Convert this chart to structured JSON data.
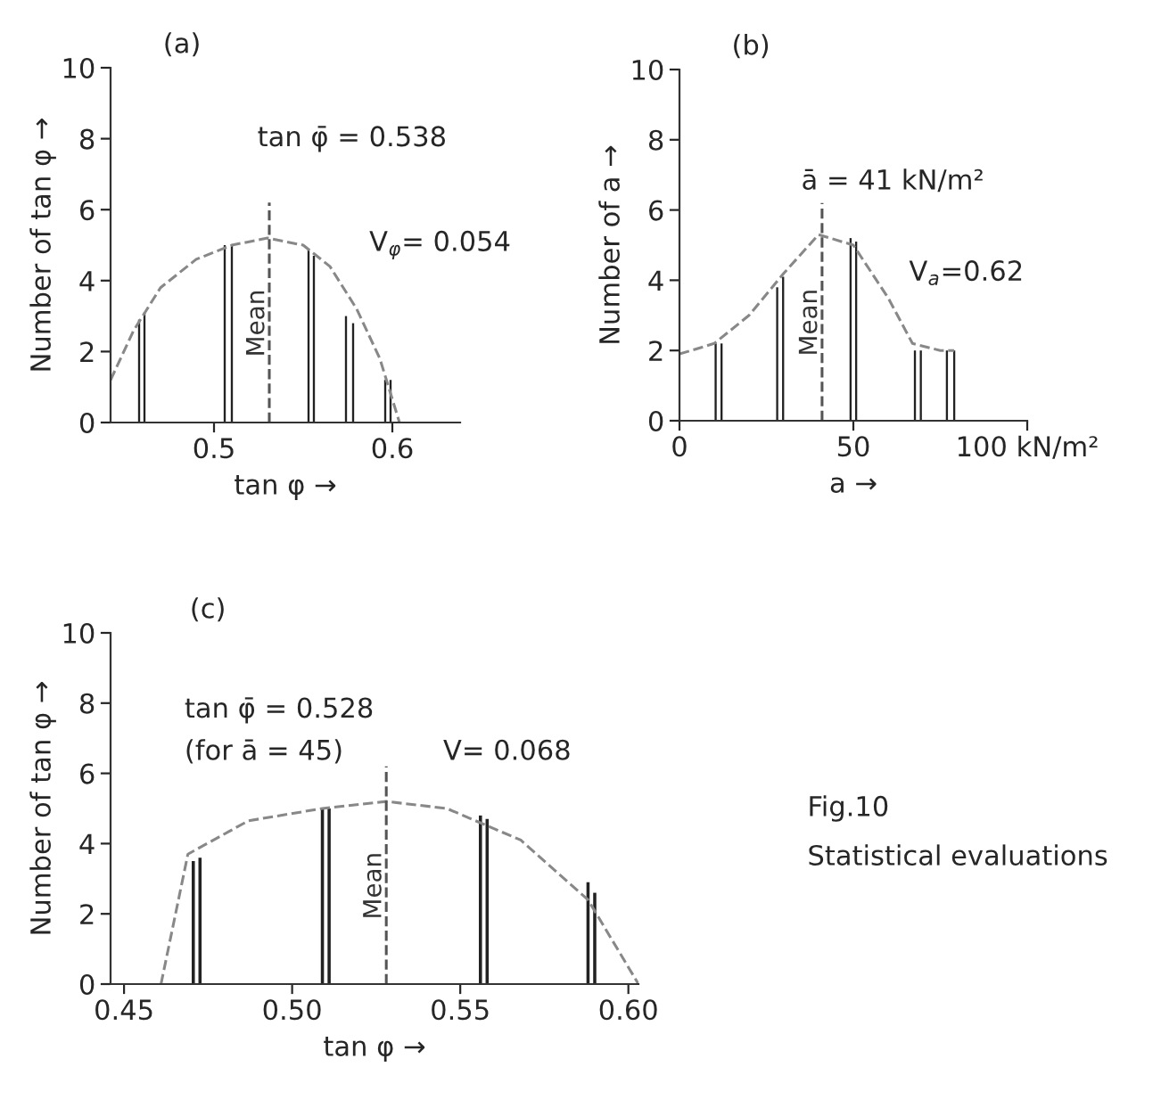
{
  "chart_data": [
    {
      "type": "bar",
      "title": "(a)",
      "xlabel": "tan φ →",
      "ylabel": "Number of tan φ →",
      "xlim": [
        0.442,
        0.638
      ],
      "xticks": [
        0.5,
        0.6
      ],
      "ylim": [
        0,
        10
      ],
      "yticks": [
        0,
        2,
        4,
        6,
        8,
        10
      ],
      "grid": false,
      "legend": false,
      "series": [
        {
          "color": "#222222",
          "x": [
            0.458,
            0.461,
            0.506,
            0.51,
            0.553,
            0.556,
            0.574,
            0.578,
            0.596,
            0.599
          ],
          "values": [
            2.9,
            3.1,
            5.0,
            5.0,
            4.9,
            4.7,
            3.0,
            2.8,
            1.2,
            1.2
          ]
        },
        {
          "type": "line",
          "color": "#888888",
          "line_style": "dashed",
          "x": [
            0.442,
            0.455,
            0.47,
            0.49,
            0.51,
            0.53,
            0.55,
            0.565,
            0.58,
            0.593,
            0.604
          ],
          "values": [
            1.2,
            2.6,
            3.8,
            4.6,
            5.0,
            5.2,
            5.0,
            4.4,
            3.2,
            1.8,
            0
          ]
        }
      ],
      "ref_lines": [
        {
          "axis": "x",
          "value": 0.531,
          "label": "Mean",
          "color": "#555555",
          "line_style": "dashed"
        }
      ],
      "annotations": [
        "tan φ̄ = 0.538",
        "V$_{φ}$= 0.054"
      ]
    },
    {
      "type": "bar",
      "title": "(b)",
      "xlabel": "a →",
      "ylabel": "Number of a →",
      "xlim": [
        0,
        100
      ],
      "xticks": [
        0,
        50,
        {
          "value": 100,
          "label": "100 kN/m²"
        }
      ],
      "ylim": [
        0,
        10
      ],
      "yticks": [
        0,
        2,
        4,
        6,
        8,
        10
      ],
      "grid": false,
      "legend": false,
      "series": [
        {
          "color": "#222222",
          "x": [
            10.4,
            12.1,
            28.1,
            29.8,
            49.2,
            50.8,
            67.7,
            69.4,
            76.9,
            79.0
          ],
          "values": [
            2.2,
            2.2,
            3.8,
            4.1,
            5.2,
            5.1,
            2.0,
            2.0,
            2.0,
            2.0
          ]
        },
        {
          "type": "line",
          "color": "#888888",
          "line_style": "dashed",
          "x": [
            0,
            10,
            20,
            30,
            40,
            50,
            60,
            67,
            75,
            79
          ],
          "values": [
            1.9,
            2.2,
            3.0,
            4.2,
            5.3,
            5.0,
            3.5,
            2.2,
            2.0,
            2.0
          ]
        }
      ],
      "ref_lines": [
        {
          "axis": "x",
          "value": 41,
          "label": "Mean",
          "color": "#555555",
          "line_style": "dashed"
        }
      ],
      "annotations": [
        "ā = 41 kN/m²",
        "V$_{a}$=0.62"
      ]
    },
    {
      "type": "bar",
      "title": "(c)",
      "xlabel": "tan φ →",
      "ylabel": "Number of tan φ →",
      "xlim": [
        0.446,
        0.603
      ],
      "xticks": [
        {
          "value": 0.45,
          "label": "0.45"
        },
        {
          "value": 0.5,
          "label": "0.50"
        },
        {
          "value": 0.55,
          "label": "0.55"
        },
        {
          "value": 0.6,
          "label": "0.60"
        }
      ],
      "ylim": [
        0,
        10
      ],
      "yticks": [
        0,
        2,
        4,
        6,
        8,
        10
      ],
      "grid": false,
      "legend": false,
      "series": [
        {
          "color": "#222222",
          "x": [
            0.4706,
            0.4726,
            0.509,
            0.511,
            0.556,
            0.558,
            0.588,
            0.59
          ],
          "values": [
            3.5,
            3.6,
            5.0,
            5.0,
            4.8,
            4.7,
            2.9,
            2.6
          ]
        },
        {
          "type": "line",
          "color": "#888888",
          "line_style": "dashed",
          "x": [
            0.461,
            0.469,
            0.487,
            0.509,
            0.528,
            0.546,
            0.568,
            0.588,
            0.603
          ],
          "values": [
            0,
            3.7,
            4.65,
            5.0,
            5.2,
            5.0,
            4.1,
            2.4,
            0
          ]
        }
      ],
      "ref_lines": [
        {
          "axis": "x",
          "value": 0.528,
          "label": "Mean",
          "color": "#555555",
          "line_style": "dashed"
        }
      ],
      "annotations": [
        "tan φ̄ = 0.528",
        "(for ā = 45)",
        "V= 0.068",
        "Fig.10",
        "Statistical evaluations"
      ]
    }
  ]
}
